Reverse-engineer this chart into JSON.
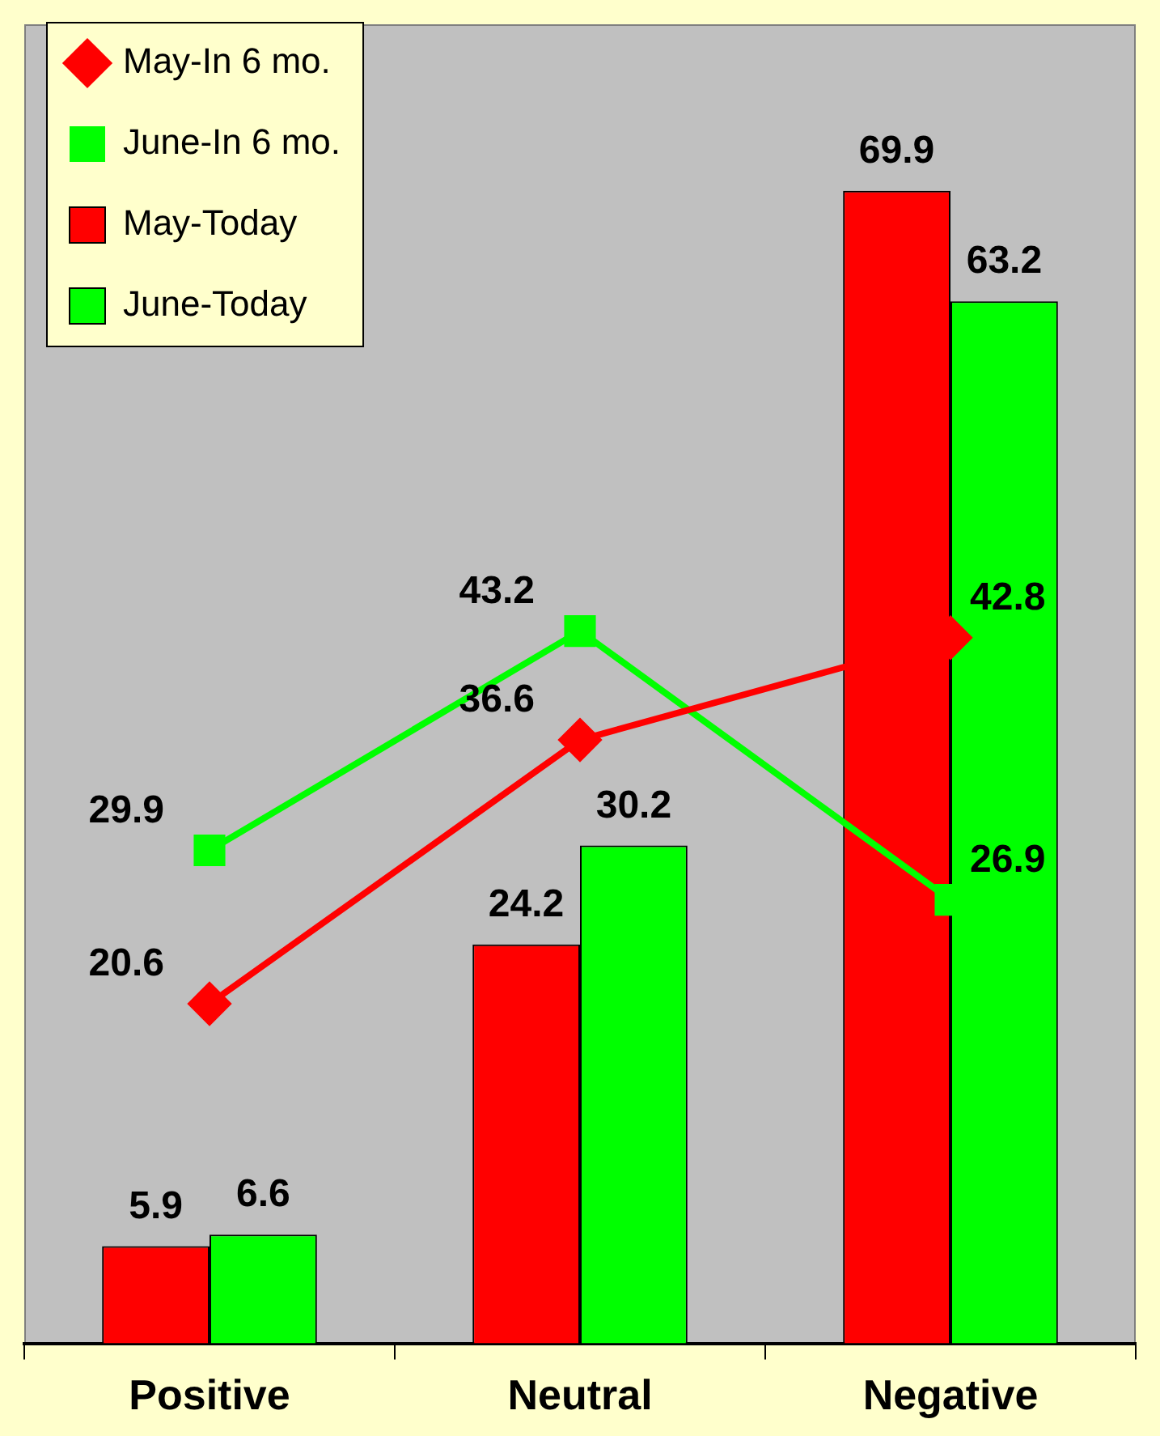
{
  "chart_data": {
    "type": "bar",
    "categories": [
      "Positive",
      "Neutral",
      "Negative"
    ],
    "series": [
      {
        "name": "May-Today",
        "color": "#ff0000",
        "values": [
          5.9,
          24.2,
          69.9
        ]
      },
      {
        "name": "June-Today",
        "color": "#00ff00",
        "values": [
          6.6,
          30.2,
          63.2
        ]
      },
      {
        "name": "May-In 6 mo.",
        "type": "line",
        "color": "#ff0000",
        "marker": "diamond",
        "values": [
          20.6,
          36.6,
          42.8
        ]
      },
      {
        "name": "June-In 6 mo.",
        "type": "line",
        "color": "#00ff00",
        "marker": "square",
        "values": [
          29.9,
          43.2,
          26.9
        ]
      }
    ],
    "ylim": [
      0,
      80
    ],
    "tick_labels": "x",
    "data_labels": true,
    "legend": "top left",
    "grid": false
  }
}
